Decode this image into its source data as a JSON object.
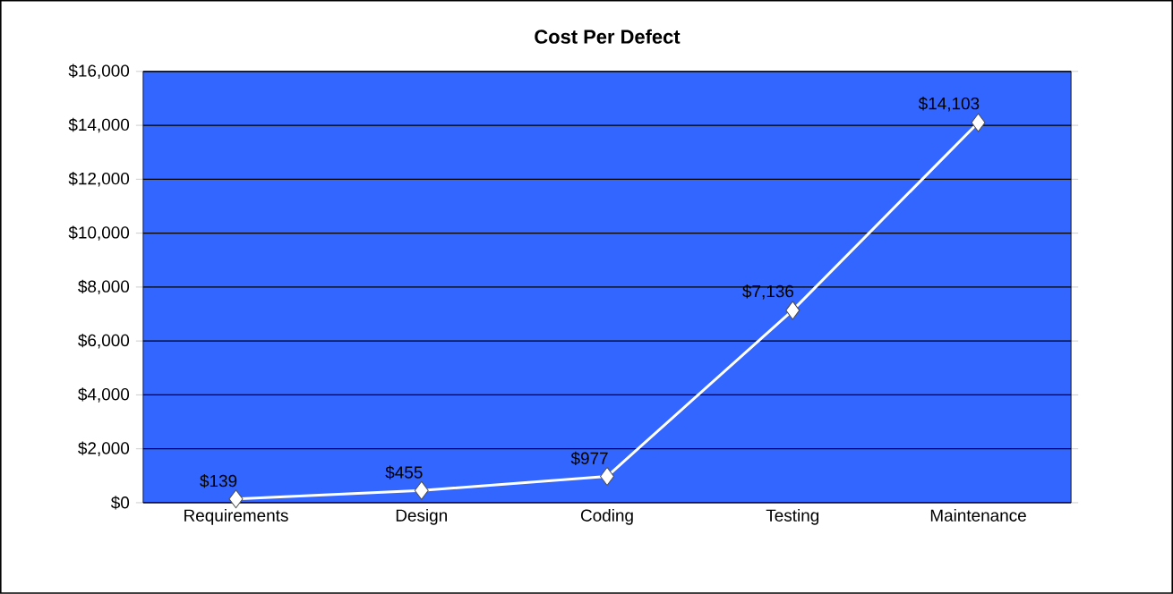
{
  "chart_data": {
    "type": "line",
    "title": "Cost Per Defect",
    "categories": [
      "Requirements",
      "Design",
      "Coding",
      "Testing",
      "Maintenance"
    ],
    "values": [
      139,
      455,
      977,
      7136,
      14103
    ],
    "value_labels": [
      "$139",
      "$455",
      "$977",
      "$7,136",
      "$14,103"
    ],
    "color": "#ffffff",
    "marker": "diamond",
    "line_style": "solid",
    "grid": "y",
    "ylim": [
      0,
      16000
    ],
    "yticks": [
      {
        "value": 0,
        "label": "$0"
      },
      {
        "value": 2000,
        "label": "$2,000"
      },
      {
        "value": 4000,
        "label": "$4,000"
      },
      {
        "value": 6000,
        "label": "$6,000"
      },
      {
        "value": 8000,
        "label": "$8,000"
      },
      {
        "value": 10000,
        "label": "$10,000"
      },
      {
        "value": 12000,
        "label": "$12,000"
      },
      {
        "value": 14000,
        "label": "$14,000"
      },
      {
        "value": 16000,
        "label": "$16,000"
      }
    ]
  }
}
